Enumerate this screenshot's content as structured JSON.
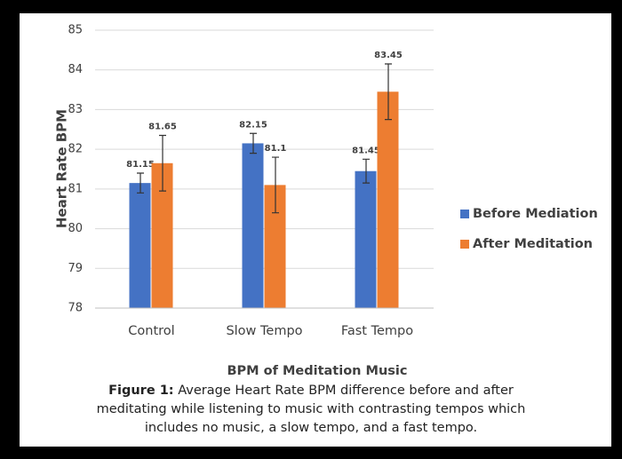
{
  "chart_data": {
    "type": "bar",
    "categories": [
      "Control",
      "Slow Tempo",
      "Fast Tempo"
    ],
    "series": [
      {
        "name": "Before Mediation",
        "color": "#4472c4",
        "values": [
          81.15,
          82.15,
          81.45
        ],
        "errors": [
          0.25,
          0.25,
          0.3
        ]
      },
      {
        "name": "After Meditation",
        "color": "#ed7d31",
        "values": [
          81.65,
          81.1,
          83.45
        ],
        "errors": [
          0.7,
          0.7,
          0.7
        ]
      }
    ],
    "ylim": [
      78,
      85
    ],
    "yticks": [
      78,
      79,
      80,
      81,
      82,
      83,
      84,
      85
    ],
    "grid": true,
    "y_label": "Heart Rate BPM",
    "x_label": "BPM of Meditation Music",
    "legend": "right",
    "caption_label": "Figure 1:",
    "caption": "Average Heart Rate BPM difference before and after meditating while listening to music with contrasting tempos which includes no music, a slow tempo, and a fast tempo."
  }
}
